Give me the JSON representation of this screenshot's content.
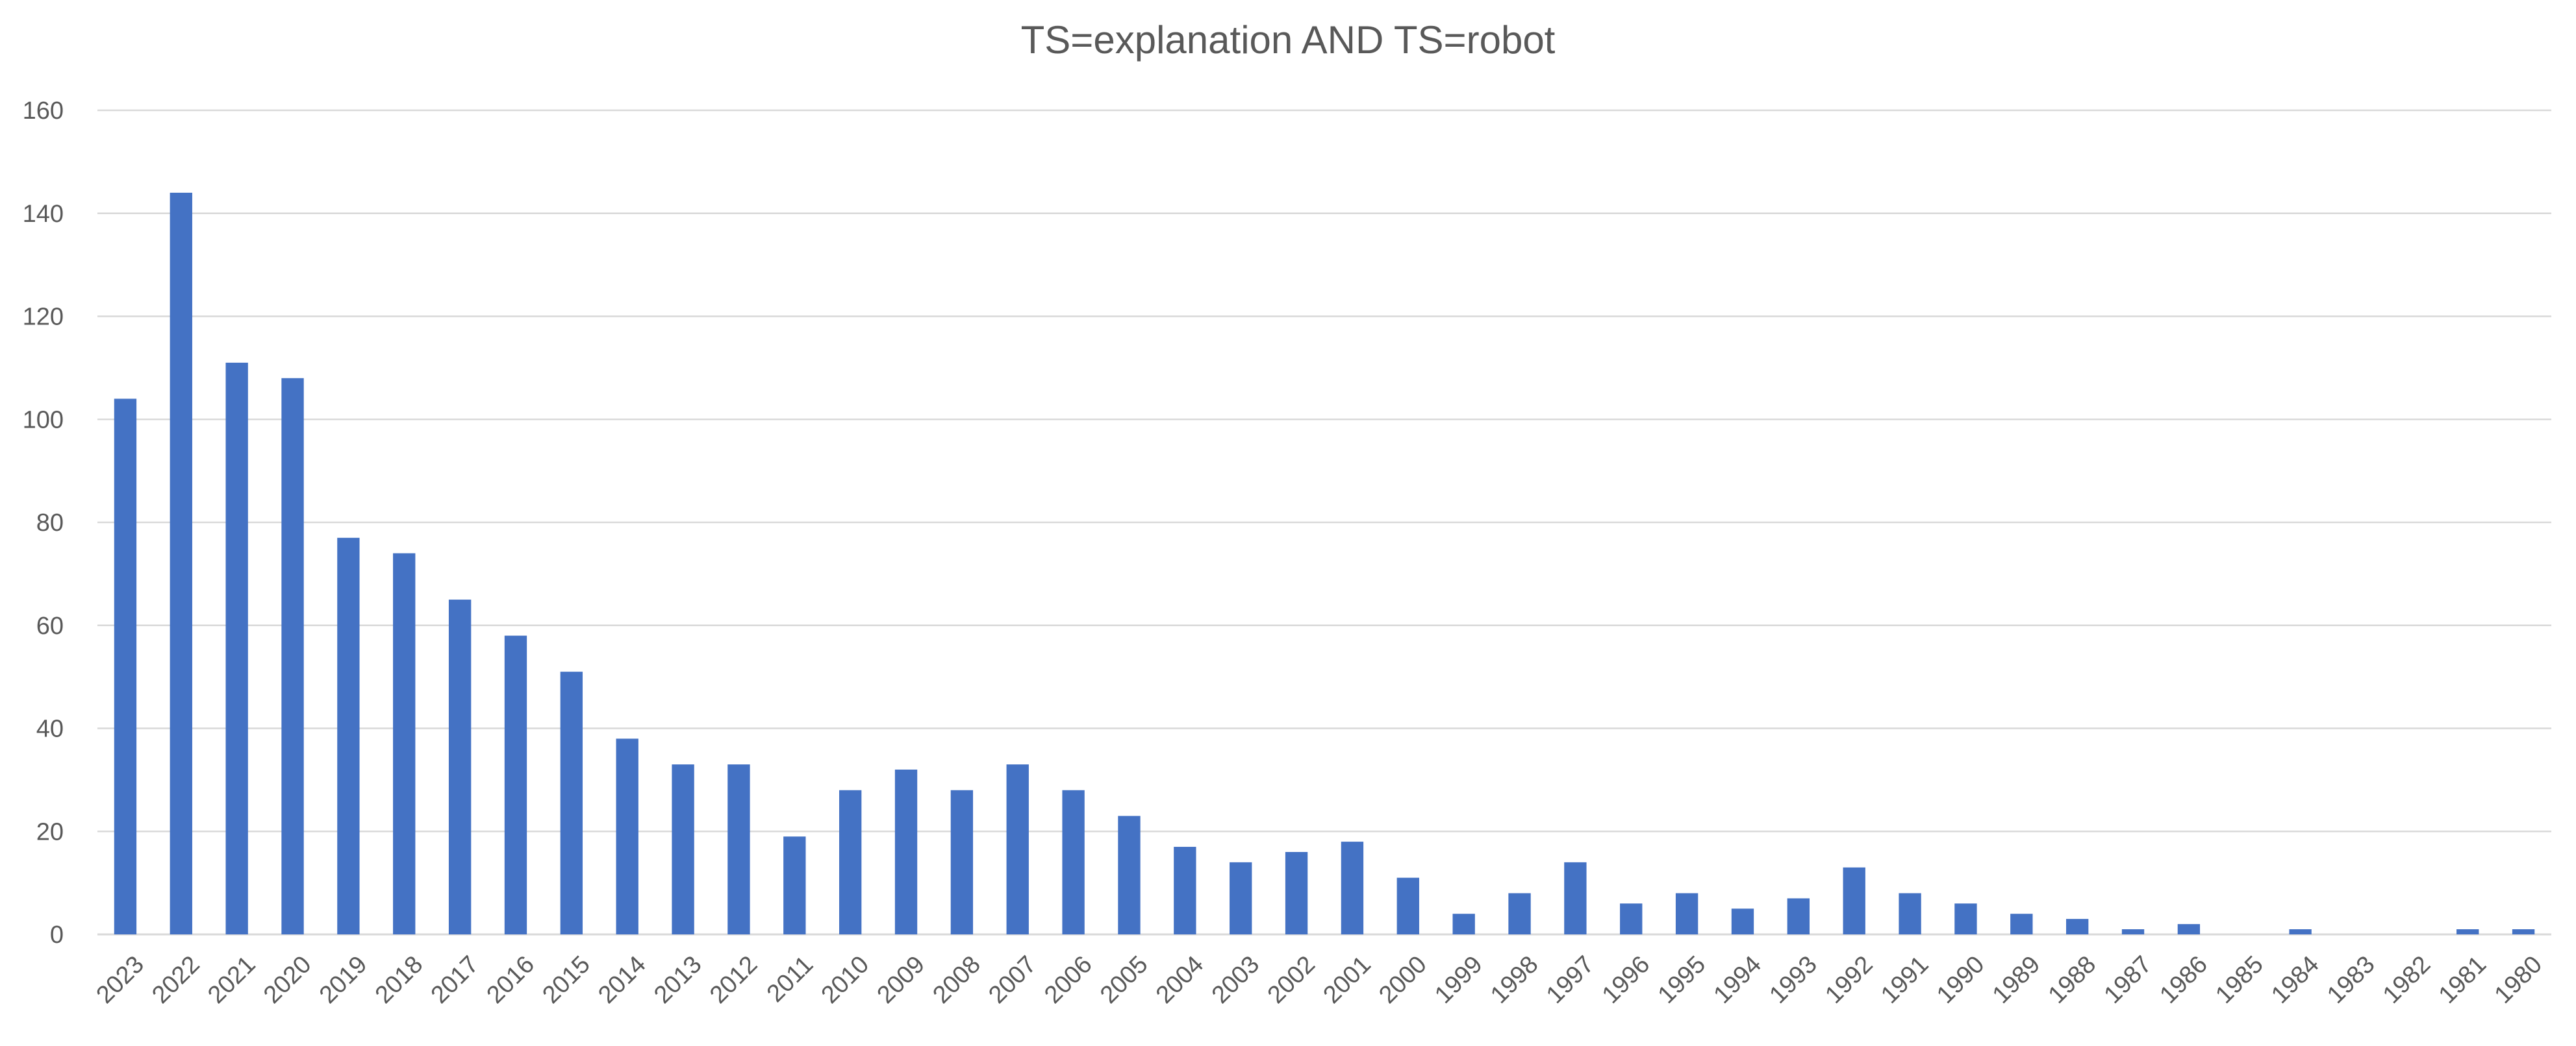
{
  "chart_data": {
    "type": "bar",
    "title": "TS=explanation AND TS=robot",
    "xlabel": "",
    "ylabel": "",
    "ylim": [
      0,
      160
    ],
    "yticks": [
      0,
      20,
      40,
      60,
      80,
      100,
      120,
      140,
      160
    ],
    "grid": true,
    "legend": "none",
    "bar_color": "#4472c4",
    "categories": [
      "2023",
      "2022",
      "2021",
      "2020",
      "2019",
      "2018",
      "2017",
      "2016",
      "2015",
      "2014",
      "2013",
      "2012",
      "2011",
      "2010",
      "2009",
      "2008",
      "2007",
      "2006",
      "2005",
      "2004",
      "2003",
      "2002",
      "2001",
      "2000",
      "1999",
      "1998",
      "1997",
      "1996",
      "1995",
      "1994",
      "1993",
      "1992",
      "1991",
      "1990",
      "1989",
      "1988",
      "1987",
      "1986",
      "1985",
      "1984",
      "1983",
      "1982",
      "1981",
      "1980"
    ],
    "values": [
      104,
      144,
      111,
      108,
      77,
      74,
      65,
      58,
      51,
      38,
      33,
      33,
      19,
      28,
      32,
      28,
      33,
      28,
      23,
      17,
      14,
      16,
      18,
      11,
      4,
      8,
      14,
      6,
      8,
      5,
      7,
      13,
      8,
      6,
      4,
      3,
      1,
      2,
      0,
      1,
      0,
      0,
      1,
      1
    ]
  }
}
